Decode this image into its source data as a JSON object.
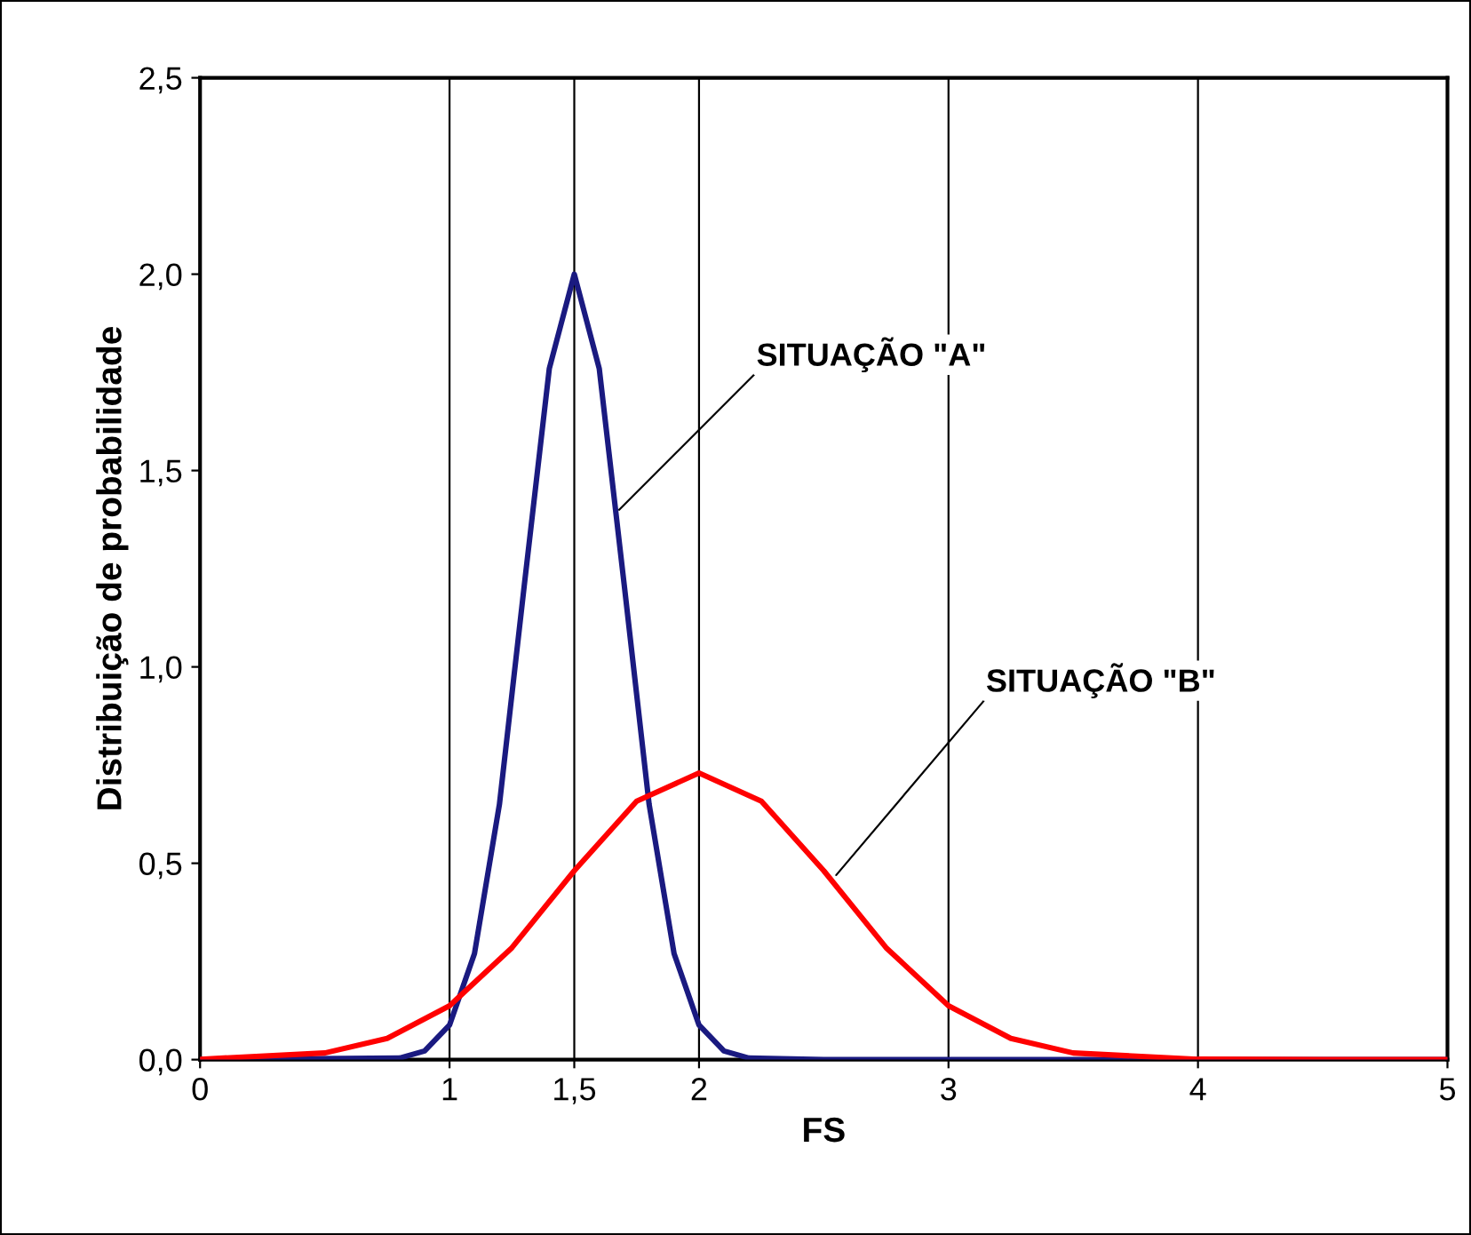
{
  "chart_data": {
    "type": "line",
    "xlabel": "FS",
    "ylabel": "Distribuição de probabilidade",
    "xlim": [
      0,
      5
    ],
    "ylim": [
      0,
      2.5
    ],
    "xticks": [
      0,
      1,
      {
        "value": 1.5,
        "label": "1,5"
      },
      2,
      3,
      4,
      5
    ],
    "yticks": [
      {
        "value": 0,
        "label": "0,0"
      },
      {
        "value": 0.5,
        "label": "0,5"
      },
      {
        "value": 1,
        "label": "1,0"
      },
      {
        "value": 1.5,
        "label": "1,5"
      },
      {
        "value": 2,
        "label": "2,0"
      },
      {
        "value": 2.5,
        "label": "2,5"
      }
    ],
    "grid": "x",
    "marker": "none",
    "line_style": "solid",
    "legend": false,
    "series": [
      {
        "color": "#1a1a80",
        "x": [
          0,
          0.8,
          0.9,
          1.0,
          1.1,
          1.2,
          1.3,
          1.4,
          1.5,
          1.6,
          1.7,
          1.8,
          1.9,
          2.0,
          2.1,
          2.2,
          2.5,
          5
        ],
        "values": [
          0,
          0.004,
          0.022,
          0.088,
          0.27,
          0.65,
          1.21,
          1.76,
          2.0,
          1.76,
          1.21,
          0.65,
          0.27,
          0.088,
          0.022,
          0.004,
          0,
          0
        ]
      },
      {
        "color": "#ff0000",
        "x": [
          0,
          0.5,
          0.75,
          1,
          1.25,
          1.5,
          1.75,
          2,
          2.25,
          2.5,
          2.75,
          3,
          3.25,
          3.5,
          4,
          4.5,
          5
        ],
        "values": [
          0.001,
          0.017,
          0.054,
          0.137,
          0.285,
          0.481,
          0.658,
          0.73,
          0.658,
          0.481,
          0.285,
          0.137,
          0.054,
          0.017,
          0.001,
          0,
          0
        ]
      }
    ],
    "annotations": [
      {
        "text": "SITUAÇÃO \"A\"",
        "x": 1.68,
        "y": 1.4
      },
      {
        "text": "SITUAÇÃO \"B\"",
        "x": 2.55,
        "y": 0.47
      }
    ]
  }
}
